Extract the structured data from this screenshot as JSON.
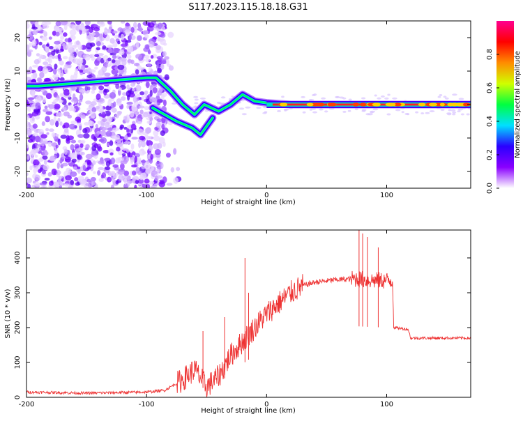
{
  "title": "S117.2023.115.18.18.G31",
  "chart_data": [
    {
      "type": "heatmap",
      "xlabel": "Height of straight line (km)",
      "ylabel": "Frequency (Hz)",
      "xlim": [
        -200,
        170
      ],
      "ylim": [
        -25,
        25
      ],
      "xticks": [
        -200,
        -100,
        0,
        100
      ],
      "yticks": [
        -20,
        -10,
        0,
        10,
        20
      ],
      "colorbar": {
        "label": "Normalized spectral amplitude",
        "range": [
          0,
          1
        ],
        "ticks": [
          "0.0",
          "0.2",
          "0.4",
          "0.6",
          "0.8"
        ],
        "colormap": [
          "#ffffff",
          "#8a00ff",
          "#2a00ff",
          "#00e0ff",
          "#00ff40",
          "#d0ff00",
          "#ff8c00",
          "#ff0000",
          "#ff0090"
        ]
      },
      "ridge": [
        {
          "x": -200,
          "y": 5.5
        },
        {
          "x": -190,
          "y": 5.5
        },
        {
          "x": -100,
          "y": 8
        },
        {
          "x": -92,
          "y": 8
        },
        {
          "x": -80,
          "y": 4
        },
        {
          "x": -70,
          "y": 0
        },
        {
          "x": -60,
          "y": -3
        },
        {
          "x": -52,
          "y": 0
        },
        {
          "x": -40,
          "y": -2
        },
        {
          "x": -30,
          "y": 0
        },
        {
          "x": -20,
          "y": 3
        },
        {
          "x": -10,
          "y": 1
        },
        {
          "x": 0,
          "y": 0.5
        },
        {
          "x": 20,
          "y": 0
        },
        {
          "x": 170,
          "y": 0
        }
      ],
      "ridge2": [
        {
          "x": -95,
          "y": -1
        },
        {
          "x": -85,
          "y": -3
        },
        {
          "x": -75,
          "y": -5
        },
        {
          "x": -62,
          "y": -7
        },
        {
          "x": -55,
          "y": -9
        },
        {
          "x": -45,
          "y": -4
        }
      ]
    },
    {
      "type": "line",
      "xlabel": "Height of straight line (km)",
      "ylabel": "SNR (10 * v/v)",
      "xlim": [
        -200,
        170
      ],
      "ylim": [
        0,
        480
      ],
      "xticks": [
        -200,
        -100,
        0,
        100
      ],
      "yticks": [
        0,
        100,
        200,
        300,
        400
      ],
      "color": "#ee3333",
      "points": [
        {
          "x": -200,
          "y": 15
        },
        {
          "x": -150,
          "y": 12
        },
        {
          "x": -100,
          "y": 15
        },
        {
          "x": -85,
          "y": 20
        },
        {
          "x": -70,
          "y": 50
        },
        {
          "x": -60,
          "y": 80
        },
        {
          "x": -50,
          "y": 30
        },
        {
          "x": -40,
          "y": 60
        },
        {
          "x": -30,
          "y": 120
        },
        {
          "x": -20,
          "y": 160
        },
        {
          "x": -10,
          "y": 200
        },
        {
          "x": 0,
          "y": 240
        },
        {
          "x": 10,
          "y": 270
        },
        {
          "x": 20,
          "y": 300
        },
        {
          "x": 30,
          "y": 320
        },
        {
          "x": 40,
          "y": 330
        },
        {
          "x": 60,
          "y": 338
        },
        {
          "x": 75,
          "y": 340
        },
        {
          "x": 90,
          "y": 335
        },
        {
          "x": 105,
          "y": 335
        },
        {
          "x": 106,
          "y": 200
        },
        {
          "x": 118,
          "y": 195
        },
        {
          "x": 120,
          "y": 170
        },
        {
          "x": 170,
          "y": 170
        }
      ],
      "spikes": [
        {
          "x": -53,
          "y": 190
        },
        {
          "x": -35,
          "y": 230
        },
        {
          "x": -18,
          "y": 400
        },
        {
          "x": -15,
          "y": 300
        },
        {
          "x": 77,
          "y": 480
        },
        {
          "x": 80,
          "y": 470
        },
        {
          "x": 84,
          "y": 460
        },
        {
          "x": 93,
          "y": 430
        }
      ]
    }
  ]
}
